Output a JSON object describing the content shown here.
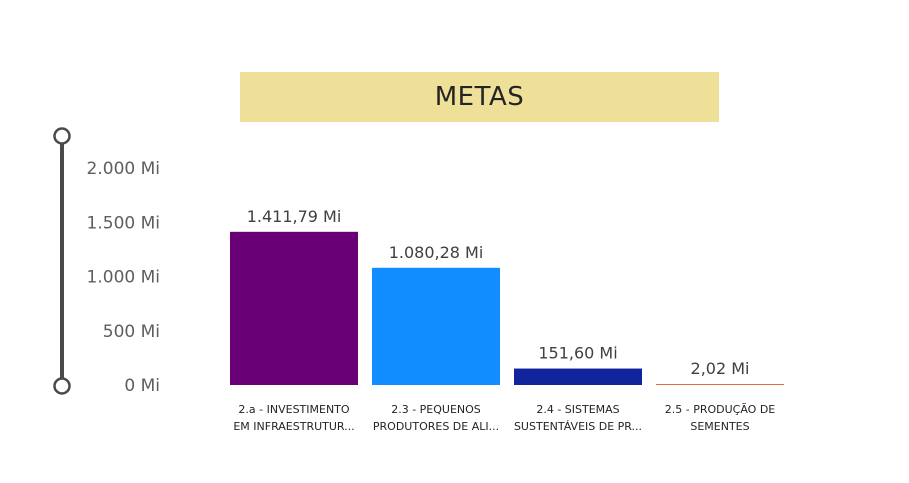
{
  "title": "METAS",
  "chart_data": {
    "type": "bar",
    "categories": [
      [
        "2.a - INVESTIMENTO",
        "EM INFRAESTRUTUR..."
      ],
      [
        "2.3 - PEQUENOS",
        "PRODUTORES DE ALI..."
      ],
      [
        "2.4 - SISTEMAS",
        "SUSTENTÁVEIS DE PR..."
      ],
      [
        "2.5 - PRODUÇÃO DE",
        "SEMENTES"
      ]
    ],
    "values": [
      1411.79,
      1080.28,
      151.6,
      2.02
    ],
    "data_labels": [
      "1.411,79 Mi",
      "1.080,28 Mi",
      "151,60 Mi",
      "2,02 Mi"
    ],
    "colors": [
      "#6a0076",
      "#118dff",
      "#12239e",
      "#e66c37"
    ],
    "y_ticks": [
      0,
      500,
      1000,
      1500,
      2000
    ],
    "y_tick_labels": [
      "0 Mi",
      "500 Mi",
      "1.000 Mi",
      "1.500 Mi",
      "2.000 Mi"
    ],
    "ylim": [
      0,
      2000
    ],
    "grid": false
  }
}
